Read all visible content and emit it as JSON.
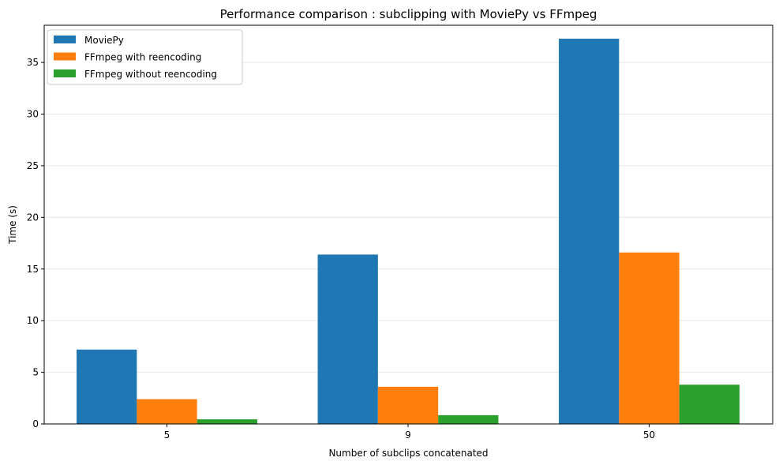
{
  "chart_data": {
    "type": "bar",
    "title": "Performance comparison : subclipping with MoviePy vs FFmpeg",
    "xlabel": "Number of subclips concatenated",
    "ylabel": "Time (s)",
    "categories": [
      "5",
      "9",
      "50"
    ],
    "series": [
      {
        "name": "MoviePy",
        "values": [
          7.2,
          16.4,
          37.3
        ],
        "color": "#1f77b4"
      },
      {
        "name": "FFmpeg with reencoding",
        "values": [
          2.4,
          3.6,
          16.6
        ],
        "color": "#ff7f0e"
      },
      {
        "name": "FFmpeg without reencoding",
        "values": [
          0.45,
          0.85,
          3.8
        ],
        "color": "#2ca02c"
      }
    ],
    "ylim": [
      0,
      38.6
    ],
    "yticks": [
      0,
      5,
      10,
      15,
      20,
      25,
      30,
      35
    ],
    "grid": "y",
    "legend": "top-left"
  }
}
